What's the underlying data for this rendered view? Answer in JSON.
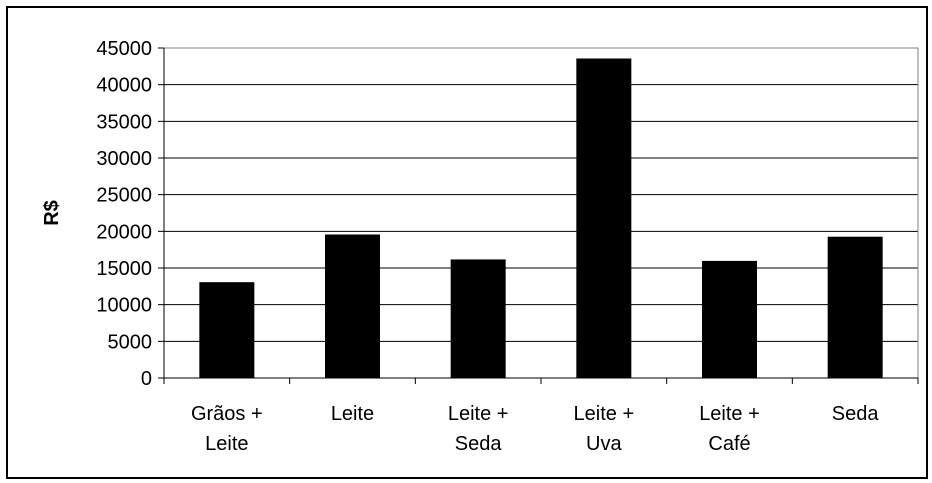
{
  "chart_data": {
    "type": "bar",
    "title": "",
    "xlabel": "",
    "ylabel": "R$",
    "ylim": [
      0,
      45000
    ],
    "ytick_step": 5000,
    "yticks": [
      "0",
      "5000",
      "10000",
      "15000",
      "20000",
      "25000",
      "30000",
      "35000",
      "40000",
      "45000"
    ],
    "grid": true,
    "legend": "none",
    "categories": [
      [
        "Grãos +",
        "Leite"
      ],
      [
        "Leite"
      ],
      [
        "Leite +",
        "Seda"
      ],
      [
        "Leite +",
        "Uva"
      ],
      [
        "Leite +",
        "Café"
      ],
      [
        "Seda"
      ]
    ],
    "values": [
      13000,
      19500,
      16100,
      43500,
      15900,
      19200
    ],
    "bar_color": "#000000"
  }
}
